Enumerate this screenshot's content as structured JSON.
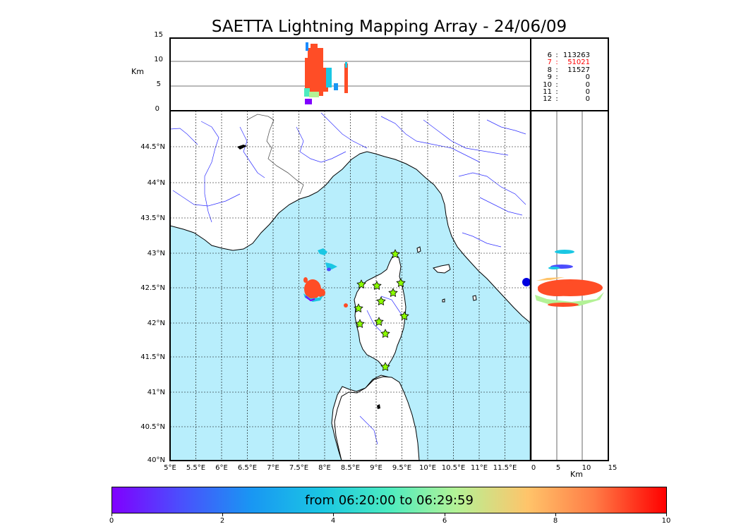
{
  "title": "SAETTA Lightning Mapping Array - 24/06/09",
  "alt_panel": {
    "ylabel": "Km",
    "yticks": [
      "15",
      "10",
      "5",
      "0"
    ]
  },
  "side_panel": {
    "xlabel": "Km",
    "xticks": [
      "0",
      "5",
      "10",
      "15"
    ]
  },
  "station_counts": [
    {
      "stations": "6",
      "sep": ":",
      "count": "113263",
      "color": "#000000"
    },
    {
      "stations": "7",
      "sep": ":",
      "count": "51021",
      "color": "#ff0000"
    },
    {
      "stations": "8",
      "sep": ":",
      "count": "11527",
      "color": "#000000"
    },
    {
      "stations": "9",
      "sep": ":",
      "count": "0",
      "color": "#000000"
    },
    {
      "stations": "10",
      "sep": ":",
      "count": "0",
      "color": "#000000"
    },
    {
      "stations": "11",
      "sep": ":",
      "count": "0",
      "color": "#000000"
    },
    {
      "stations": "12",
      "sep": ":",
      "count": "0",
      "color": "#000000"
    }
  ],
  "map": {
    "lon_ticks": [
      "5°E",
      "5.5°E",
      "6°E",
      "6.5°E",
      "7°E",
      "7.5°E",
      "8°E",
      "8.5°E",
      "9°E",
      "9.5°E",
      "10°E",
      "10.5°E",
      "11°E",
      "11.5°E"
    ],
    "lat_ticks": [
      "44.5°N",
      "44°N",
      "43.5°N",
      "43°N",
      "42.5°N",
      "42°N",
      "41.5°N",
      "41°N",
      "40.5°N",
      "40°N"
    ],
    "sea_color": "#b8eefc",
    "land_color": "#ffffff",
    "river_color": "#3030ff"
  },
  "colorbar": {
    "text": "from 06:20:00 to 06:29:59",
    "ticks": [
      "0",
      "2",
      "4",
      "6",
      "8",
      "10"
    ]
  }
}
